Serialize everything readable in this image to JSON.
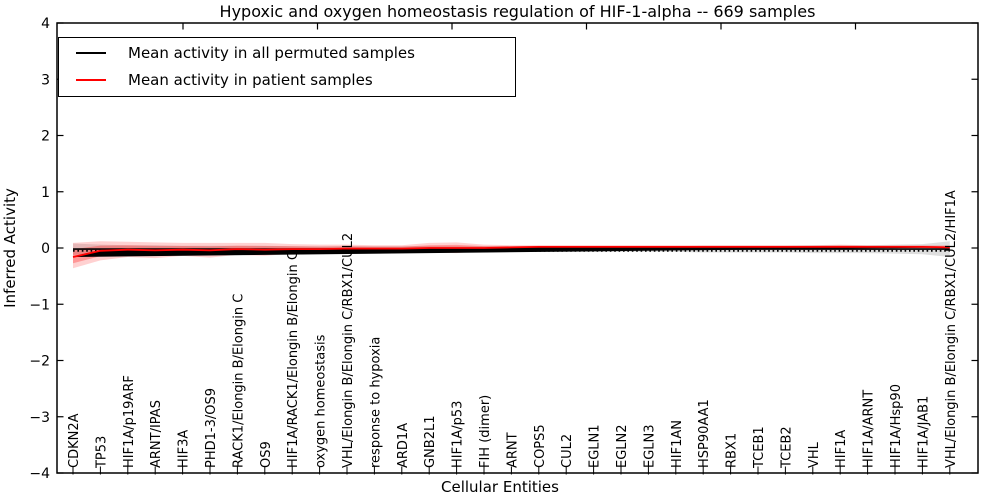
{
  "figure": {
    "title": "Hypoxic and oxygen homeostasis regulation of HIF-1-alpha -- 669 samples",
    "xlabel": "Cellular Entities",
    "ylabel": "Inferred Activity"
  },
  "colors": {
    "permuted_line": "#000000",
    "patient_line": "#ff0000",
    "permuted_band": "rgba(0,0,0,0.13)",
    "patient_band_outer": "rgba(255,0,0,0.18)",
    "patient_band_inner": "rgba(255,0,0,0.28)",
    "axis": "#000000"
  },
  "chart_data": {
    "type": "line",
    "title": "Hypoxic and oxygen homeostasis regulation of HIF-1-alpha -- 669 samples",
    "xlabel": "Cellular Entities",
    "ylabel": "Inferred Activity",
    "ylim": [
      -4,
      4
    ],
    "yticks": [
      4,
      3,
      2,
      1,
      0,
      -1,
      -2,
      -3,
      -4
    ],
    "grid": false,
    "legend_position": "upper left",
    "categories": [
      "CDKN2A",
      "TP53",
      "HIF1A/p19ARF",
      "ARNT/IPAS",
      "HIF3A",
      "PHD1-3/OS9",
      "RACK1/Elongin B/Elongin C",
      "OS9",
      "HIF1A/RACK1/Elongin B/Elongin C",
      "oxygen homeostasis",
      "VHL/Elongin B/Elongin C/RBX1/CUL2",
      "response to hypoxia",
      "ARD1A",
      "GNB2L1",
      "HIF1A/p53",
      "FIH (dimer)",
      "ARNT",
      "COPS5",
      "CUL2",
      "EGLN1",
      "EGLN2",
      "EGLN3",
      "HIF1AN",
      "HSP90AA1",
      "RBX1",
      "TCEB1",
      "TCEB2",
      "VHL",
      "HIF1A",
      "HIF1A/ARNT",
      "HIF1A/Hsp90",
      "HIF1A/JAB1",
      "VHL/Elongin B/Elongin C/RBX1/CUL2/HIF1A"
    ],
    "series": [
      {
        "name": "Mean activity in all permuted samples",
        "color": "#000000",
        "values": [
          -0.02,
          -0.02,
          -0.02,
          -0.02,
          -0.02,
          -0.02,
          -0.02,
          -0.02,
          -0.02,
          -0.02,
          -0.02,
          -0.02,
          -0.02,
          -0.02,
          -0.02,
          -0.02,
          -0.02,
          -0.02,
          -0.02,
          -0.02,
          -0.02,
          -0.02,
          -0.02,
          -0.02,
          -0.02,
          -0.02,
          -0.02,
          -0.02,
          -0.02,
          -0.02,
          -0.02,
          -0.02,
          -0.02
        ],
        "band_halfwidth": [
          0.1,
          0.08,
          0.07,
          0.07,
          0.06,
          0.06,
          0.06,
          0.06,
          0.05,
          0.05,
          0.05,
          0.05,
          0.05,
          0.05,
          0.05,
          0.05,
          0.05,
          0.05,
          0.05,
          0.05,
          0.05,
          0.05,
          0.05,
          0.06,
          0.06,
          0.06,
          0.06,
          0.07,
          0.07,
          0.07,
          0.08,
          0.09,
          0.14
        ]
      },
      {
        "name": "Mean activity in patient samples",
        "color": "#ff0000",
        "values": [
          -0.16,
          -0.05,
          -0.03,
          -0.04,
          -0.03,
          -0.04,
          -0.02,
          -0.03,
          -0.02,
          -0.02,
          -0.01,
          -0.01,
          -0.01,
          0.0,
          0.0,
          0.0,
          0.01,
          0.02,
          0.02,
          0.02,
          0.02,
          0.02,
          0.02,
          0.02,
          0.02,
          0.02,
          0.02,
          0.02,
          0.02,
          0.02,
          0.02,
          0.02,
          0.01
        ],
        "band_upper": [
          0.25,
          0.17,
          0.14,
          0.14,
          0.12,
          0.13,
          0.11,
          0.12,
          0.09,
          0.08,
          0.07,
          0.06,
          0.06,
          0.09,
          0.1,
          0.06,
          0.04,
          0.03,
          0.03,
          0.03,
          0.03,
          0.03,
          0.03,
          0.03,
          0.03,
          0.03,
          0.03,
          0.03,
          0.04,
          0.03,
          0.03,
          0.03,
          0.04
        ],
        "band_lower": [
          0.2,
          0.17,
          0.13,
          0.14,
          0.11,
          0.13,
          0.1,
          0.11,
          0.08,
          0.07,
          0.06,
          0.05,
          0.05,
          0.08,
          0.09,
          0.05,
          0.04,
          0.03,
          0.03,
          0.03,
          0.03,
          0.03,
          0.03,
          0.03,
          0.03,
          0.03,
          0.03,
          0.03,
          0.04,
          0.03,
          0.03,
          0.03,
          0.04
        ]
      }
    ],
    "black_dotted_line_value": -0.05
  }
}
